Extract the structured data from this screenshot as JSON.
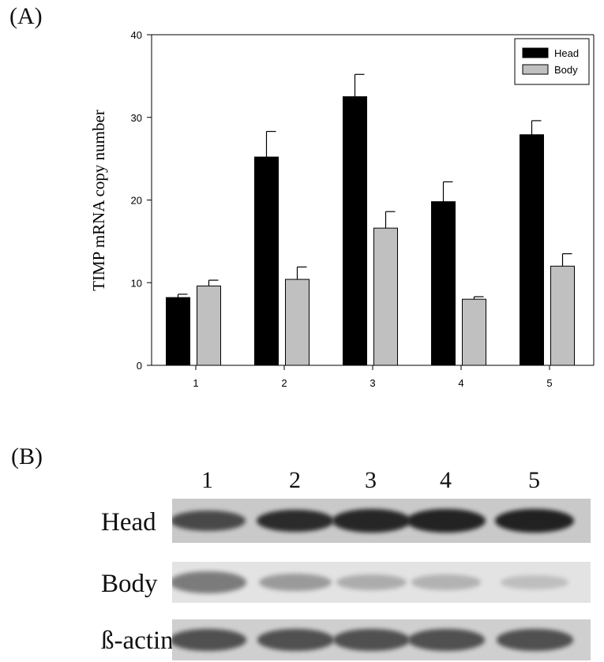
{
  "panel_a_label": "(A)",
  "panel_b_label": "(B)",
  "chart_data": {
    "type": "bar",
    "title": "",
    "xlabel": "",
    "ylabel": "TIMP mRNA copy number",
    "categories": [
      "1",
      "2",
      "3",
      "4",
      "5"
    ],
    "ylim": [
      0,
      40
    ],
    "yticks": [
      0,
      10,
      20,
      30,
      40
    ],
    "grid": false,
    "legend_position": "top-right",
    "series": [
      {
        "name": "Head",
        "color": "#000000",
        "values": [
          8.2,
          25.2,
          32.5,
          19.8,
          27.9
        ],
        "errors": [
          0.4,
          3.1,
          2.7,
          2.4,
          1.7
        ]
      },
      {
        "name": "Body",
        "color": "#c0c0c0",
        "values": [
          9.6,
          10.4,
          16.6,
          8.0,
          12.0
        ],
        "errors": [
          0.7,
          1.5,
          2.0,
          0.3,
          1.5
        ]
      }
    ]
  },
  "blot": {
    "lanes": [
      "1",
      "2",
      "3",
      "4",
      "5"
    ],
    "rows": [
      {
        "label": "Head",
        "tone": "#c9c9c9",
        "band_color": "#1e1e1e",
        "intensities": [
          0.75,
          0.92,
          0.95,
          0.97,
          0.98
        ]
      },
      {
        "label": "Body",
        "tone": "#e3e3e3",
        "band_color": "#6a6a6a",
        "intensities": [
          0.85,
          0.6,
          0.45,
          0.4,
          0.3
        ]
      },
      {
        "label": "ß-actin",
        "tone": "#cfcfcf",
        "band_color": "#3a3a3a",
        "intensities": [
          0.85,
          0.85,
          0.85,
          0.85,
          0.85
        ]
      }
    ]
  }
}
